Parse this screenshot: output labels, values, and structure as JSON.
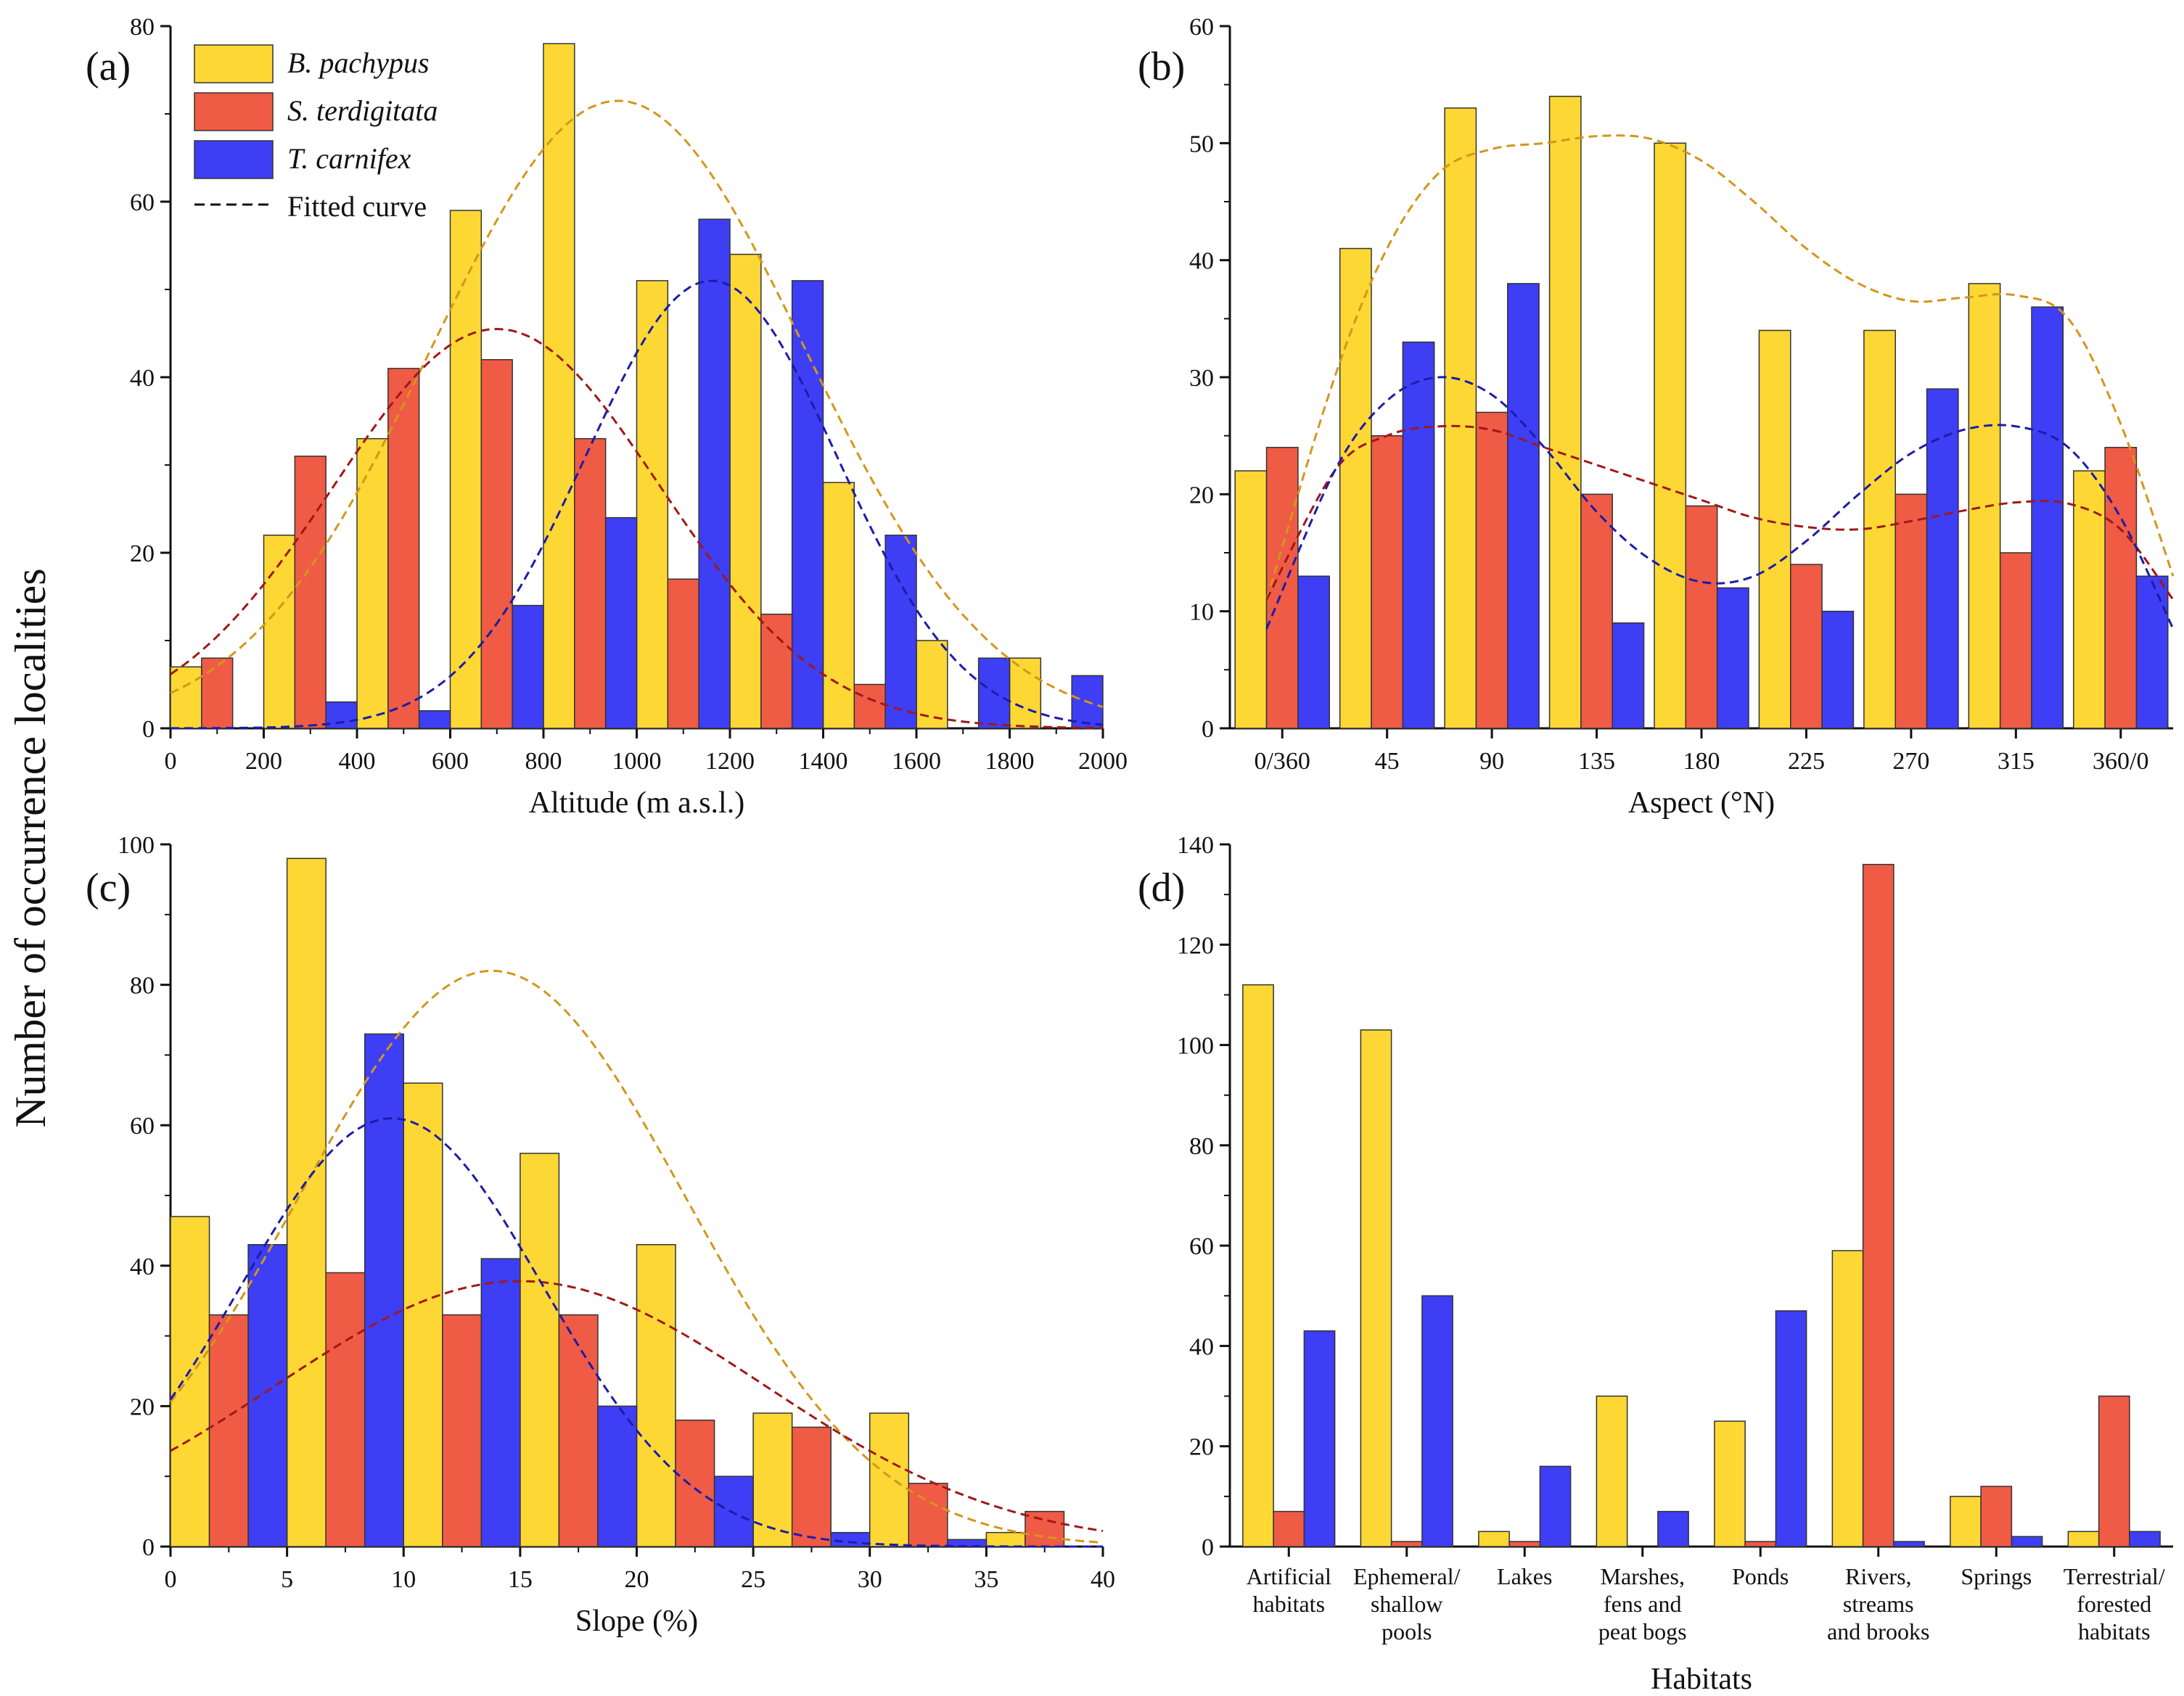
{
  "figure": {
    "global_ylabel": "Number of occurrence localities",
    "colors": {
      "bpachypus": "#fdd835",
      "sterdigitata": "#ef5b45",
      "tcarnifex": "#3e3ef5",
      "bpachypus_curve": "#d4961a",
      "sterdigitata_curve": "#a01818",
      "tcarnifex_curve": "#1c1ca8",
      "bar_edge": "#333333"
    },
    "legend": [
      {
        "key": "bpachypus",
        "label": "B. pachypus",
        "italic": true
      },
      {
        "key": "sterdigitata",
        "label": "S. terdigitata",
        "italic": true
      },
      {
        "key": "tcarnifex",
        "label": "T. carnifex",
        "italic": true
      },
      {
        "key": "fitted",
        "label": "Fitted curve",
        "italic": false
      }
    ]
  },
  "chart_data": [
    {
      "id": "a",
      "panel_label": "(a)",
      "type": "bar",
      "xlabel": "Altitude (m a.s.l.)",
      "xlim": [
        0,
        2000
      ],
      "xticks": [
        0,
        200,
        400,
        600,
        800,
        1000,
        1200,
        1400,
        1600,
        1800,
        2000
      ],
      "ylim": [
        0,
        80
      ],
      "yticks": [
        0,
        20,
        40,
        60,
        80
      ],
      "bin_width": 200,
      "x": [
        100,
        300,
        500,
        700,
        900,
        1100,
        1300,
        1500,
        1700,
        1900
      ],
      "series": [
        {
          "key": "bpachypus",
          "name": "B. pachypus",
          "values": [
            7,
            22,
            33,
            59,
            78,
            51,
            54,
            28,
            10,
            8
          ]
        },
        {
          "key": "sterdigitata",
          "name": "S. terdigitata",
          "values": [
            8,
            31,
            41,
            42,
            33,
            17,
            13,
            5,
            0,
            0
          ]
        },
        {
          "key": "tcarnifex",
          "name": "T. carnifex",
          "values": [
            0,
            3,
            2,
            14,
            24,
            58,
            51,
            22,
            8,
            6
          ]
        }
      ],
      "curves": [
        {
          "key": "bpachypus",
          "model": "gauss",
          "params": {
            "mu": 960,
            "sigma": 400,
            "amp": 71.5
          }
        },
        {
          "key": "sterdigitata",
          "model": "gauss",
          "params": {
            "mu": 700,
            "sigma": 350,
            "amp": 45.5
          }
        },
        {
          "key": "tcarnifex",
          "model": "gauss",
          "params": {
            "mu": 1160,
            "sigma": 270,
            "amp": 51
          }
        }
      ],
      "legend_position": "top-left"
    },
    {
      "id": "b",
      "panel_label": "(b)",
      "type": "bar",
      "xlabel": "Aspect (°N)",
      "ylim": [
        0,
        60
      ],
      "yticks": [
        0,
        10,
        20,
        30,
        40,
        50,
        60
      ],
      "categories": [
        "0/360",
        "45",
        "90",
        "135",
        "180",
        "225",
        "270",
        "315",
        "360/0"
      ],
      "series": [
        {
          "key": "bpachypus",
          "name": "B. pachypus",
          "values": [
            22,
            41,
            53,
            54,
            50,
            34,
            34,
            38,
            22
          ]
        },
        {
          "key": "sterdigitata",
          "name": "S. terdigitata",
          "values": [
            24,
            25,
            27,
            20,
            19,
            14,
            20,
            15,
            24
          ]
        },
        {
          "key": "tcarnifex",
          "name": "T. carnifex",
          "values": [
            13,
            33,
            38,
            9,
            12,
            10,
            29,
            36,
            13
          ]
        }
      ],
      "curves": [
        {
          "key": "bpachypus",
          "model": "points",
          "x": [
            -0.15,
            0.5,
            1,
            1.5,
            2,
            2.5,
            3,
            3.5,
            4,
            4.5,
            5,
            5.5,
            6,
            6.5,
            7,
            7.5,
            8,
            8.5
          ],
          "y": [
            11,
            30,
            41,
            47.5,
            49.5,
            50,
            50.6,
            50.4,
            48.5,
            45,
            41,
            38,
            36.5,
            36.8,
            37,
            35,
            26,
            13
          ]
        },
        {
          "key": "sterdigitata",
          "model": "points",
          "x": [
            -0.15,
            0.5,
            1,
            1.5,
            2,
            2.5,
            3,
            3.5,
            4,
            4.5,
            5,
            5.5,
            6,
            6.5,
            7,
            7.5,
            8,
            8.5
          ],
          "y": [
            11,
            22,
            25,
            25.8,
            25.5,
            24,
            22.5,
            21,
            19.5,
            18,
            17.2,
            17,
            17.7,
            18.6,
            19.3,
            19.2,
            17,
            11
          ]
        },
        {
          "key": "tcarnifex",
          "model": "points",
          "x": [
            -0.15,
            0.5,
            1,
            1.5,
            2,
            2.5,
            3,
            3.5,
            4,
            4.5,
            5,
            5.5,
            6,
            6.5,
            7,
            7.5,
            8,
            8.5
          ],
          "y": [
            8.5,
            22,
            28,
            30,
            28.5,
            24,
            18.5,
            14.5,
            12.5,
            13,
            16,
            20,
            23.5,
            25.5,
            25.8,
            24,
            18,
            8.5
          ]
        }
      ]
    },
    {
      "id": "c",
      "panel_label": "(c)",
      "type": "bar",
      "xlabel": "Slope (%)",
      "xlim": [
        0,
        40
      ],
      "xticks": [
        0,
        5,
        10,
        15,
        20,
        25,
        30,
        35,
        40
      ],
      "ylim": [
        0,
        100
      ],
      "yticks": [
        0,
        20,
        40,
        60,
        80,
        100
      ],
      "bin_width": 5,
      "x": [
        2.5,
        7.5,
        12.5,
        17.5,
        22.5,
        27.5,
        32.5,
        37.5
      ],
      "series": [
        {
          "key": "bpachypus",
          "name": "B. pachypus",
          "values": [
            47,
            98,
            66,
            56,
            43,
            19,
            19,
            2
          ]
        },
        {
          "key": "sterdigitata",
          "name": "S. terdigitata",
          "values": [
            33,
            39,
            33,
            33,
            18,
            17,
            9,
            5
          ]
        },
        {
          "key": "tcarnifex",
          "name": "T. carnifex",
          "values": [
            43,
            73,
            41,
            20,
            10,
            2,
            1,
            0
          ]
        }
      ],
      "curves": [
        {
          "key": "bpachypus",
          "model": "gauss",
          "params": {
            "mu": 13.8,
            "sigma": 8.3,
            "amp": 82
          }
        },
        {
          "key": "sterdigitata",
          "model": "gauss",
          "params": {
            "mu": 15,
            "sigma": 10.5,
            "amp": 37.8
          }
        },
        {
          "key": "tcarnifex",
          "model": "gauss",
          "params": {
            "mu": 9.5,
            "sigma": 6.5,
            "amp": 61
          }
        }
      ]
    },
    {
      "id": "d",
      "panel_label": "(d)",
      "type": "bar",
      "xlabel": "Habitats",
      "ylim": [
        0,
        140
      ],
      "yticks": [
        0,
        20,
        40,
        60,
        80,
        100,
        120,
        140
      ],
      "categories": [
        [
          "Artificial",
          "habitats"
        ],
        [
          "Ephemeral/",
          "shallow",
          "pools"
        ],
        [
          "Lakes"
        ],
        [
          "Marshes,",
          "fens and",
          "peat bogs"
        ],
        [
          "Ponds"
        ],
        [
          "Rivers,",
          "streams",
          "and brooks"
        ],
        [
          "Springs"
        ],
        [
          "Terrestrial/",
          "forested",
          "habitats"
        ]
      ],
      "series": [
        {
          "key": "bpachypus",
          "name": "B. pachypus",
          "values": [
            112,
            103,
            3,
            30,
            25,
            59,
            10,
            3
          ]
        },
        {
          "key": "sterdigitata",
          "name": "S. terdigitata",
          "values": [
            7,
            1,
            1,
            0,
            1,
            136,
            12,
            30
          ]
        },
        {
          "key": "tcarnifex",
          "name": "T. carnifex",
          "values": [
            43,
            50,
            16,
            7,
            47,
            1,
            2,
            3
          ]
        }
      ]
    }
  ]
}
